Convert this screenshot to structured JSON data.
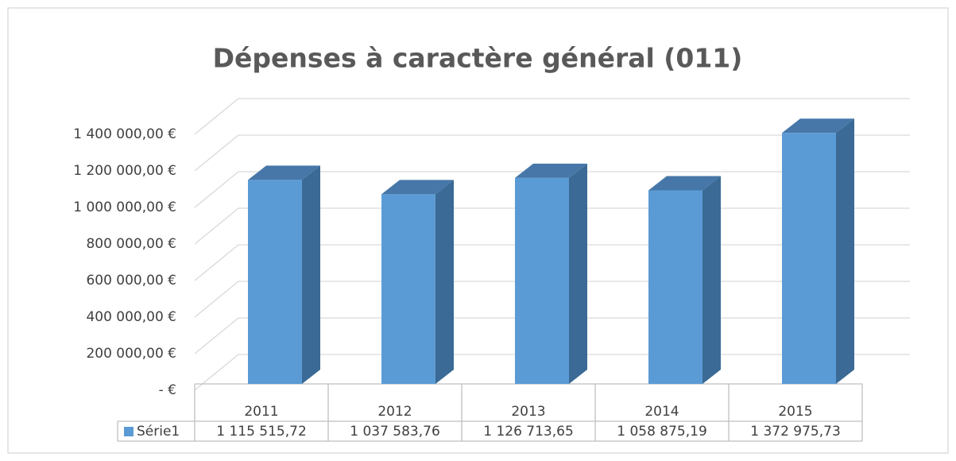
{
  "chart_data": {
    "type": "bar",
    "title": "Dépenses à caractère général (011)",
    "categories": [
      "2011",
      "2012",
      "2013",
      "2014",
      "2015"
    ],
    "series": [
      {
        "name": "Série1",
        "color": "#5b9bd5",
        "values": [
          1115515.72,
          1037583.76,
          1126713.65,
          1058875.19,
          1372975.73
        ],
        "value_labels": [
          "1 115 515,72",
          "1 037 583,76",
          "1 126 713,65",
          "1 058 875,19",
          "1 372 975,73"
        ]
      }
    ],
    "ylim": [
      0,
      1400000
    ],
    "yticks": [
      {
        "value": 0,
        "label": "-  €"
      },
      {
        "value": 200000,
        "label": "200 000,00 €"
      },
      {
        "value": 400000,
        "label": "400 000,00 €"
      },
      {
        "value": 600000,
        "label": "600 000,00 €"
      },
      {
        "value": 800000,
        "label": "800 000,00 €"
      },
      {
        "value": 1000000,
        "label": "1 000 000,00 €"
      },
      {
        "value": 1200000,
        "label": "1 200 000,00 €"
      },
      {
        "value": 1400000,
        "label": "1 400 000,00 €"
      }
    ],
    "grid": true
  }
}
